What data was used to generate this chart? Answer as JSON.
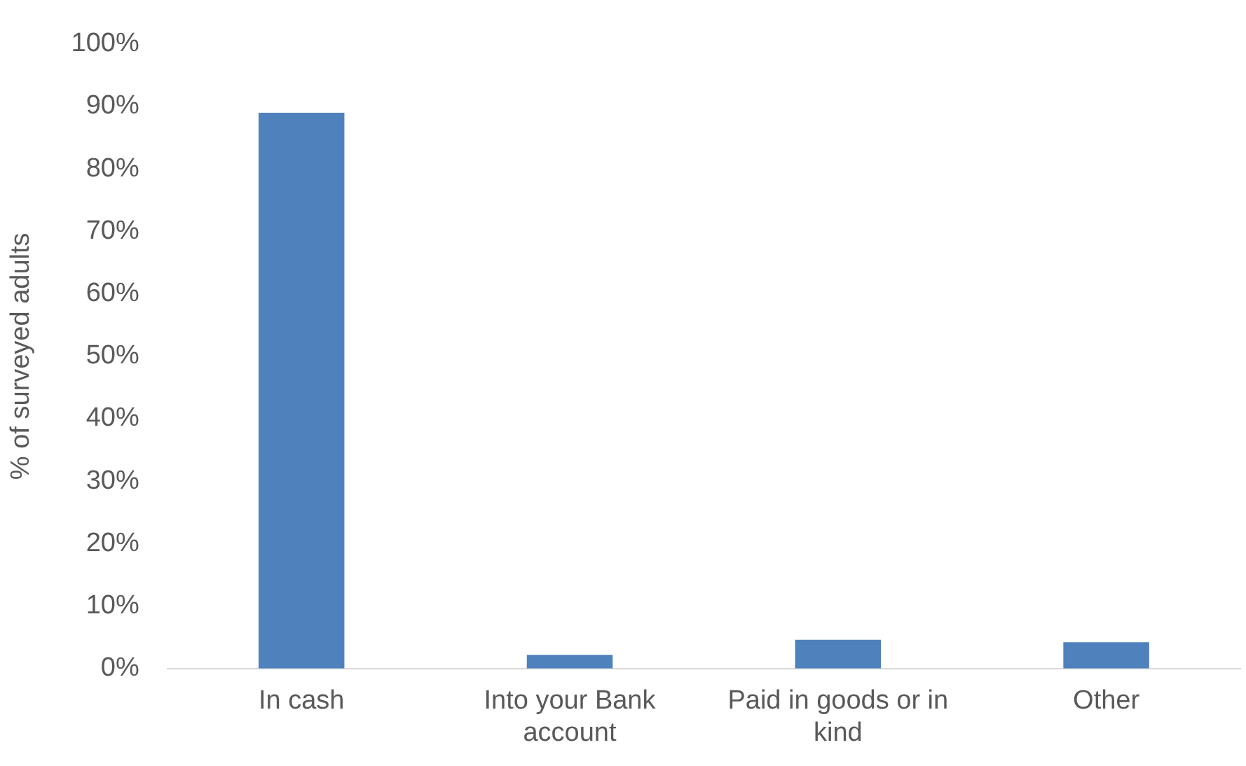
{
  "chart_data": {
    "type": "bar",
    "ylabel": "% of surveyed adults",
    "categories": [
      "In cash",
      "Into your Bank account",
      "Paid in goods or in kind",
      "Other"
    ],
    "values": [
      89,
      2.2,
      4.6,
      4.2
    ],
    "color": "#4f81bd",
    "ylim": [
      0,
      100
    ],
    "yticks": [
      {
        "value": 0,
        "label": "0%"
      },
      {
        "value": 10,
        "label": "10%"
      },
      {
        "value": 20,
        "label": "20%"
      },
      {
        "value": 30,
        "label": "30%"
      },
      {
        "value": 40,
        "label": "40%"
      },
      {
        "value": 50,
        "label": "50%"
      },
      {
        "value": 60,
        "label": "60%"
      },
      {
        "value": 70,
        "label": "70%"
      },
      {
        "value": 80,
        "label": "80%"
      },
      {
        "value": 90,
        "label": "90%"
      },
      {
        "value": 100,
        "label": "100%"
      }
    ],
    "grid": false,
    "legend": false
  }
}
